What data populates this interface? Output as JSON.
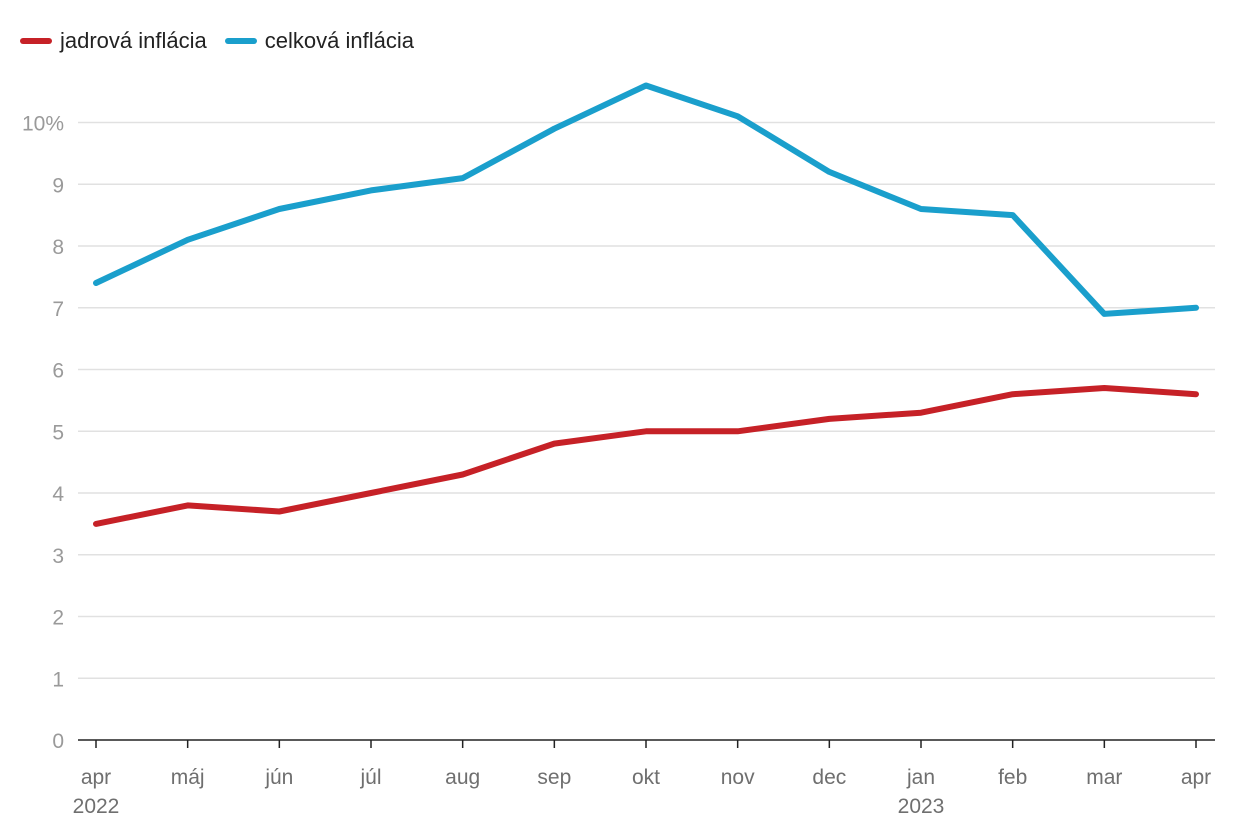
{
  "chart_data": {
    "type": "line",
    "title": "",
    "xlabel": "",
    "ylabel": "",
    "categories": [
      "apr",
      "máj",
      "jún",
      "júl",
      "aug",
      "sep",
      "okt",
      "nov",
      "dec",
      "jan",
      "feb",
      "mar",
      "apr"
    ],
    "year_labels": [
      {
        "index": 0,
        "label": "2022"
      },
      {
        "index": 9,
        "label": "2023"
      }
    ],
    "y_ticks": [
      "0",
      "1",
      "2",
      "3",
      "4",
      "5",
      "6",
      "7",
      "8",
      "9",
      "10%"
    ],
    "ylim": [
      0,
      10.8
    ],
    "grid": true,
    "legend_position": "top-left",
    "series": [
      {
        "name": "jadrová inflácia",
        "color": "#c62127",
        "values": [
          3.5,
          3.8,
          3.7,
          4.0,
          4.3,
          4.8,
          5.0,
          5.0,
          5.2,
          5.3,
          5.6,
          5.7,
          5.6
        ]
      },
      {
        "name": "celková inflácia",
        "color": "#1a9fcc",
        "values": [
          7.4,
          8.1,
          8.6,
          8.9,
          9.1,
          9.9,
          10.6,
          10.1,
          9.2,
          8.6,
          8.5,
          6.9,
          7.0
        ]
      }
    ]
  }
}
